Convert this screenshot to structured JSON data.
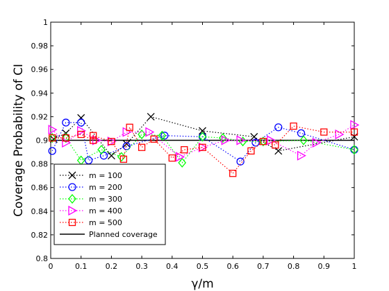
{
  "chart_data": {
    "type": "line",
    "xlabel": "γ/m",
    "ylabel": "Coverage Probability of CI",
    "xlim": [
      0,
      1
    ],
    "ylim": [
      0.8,
      1
    ],
    "xticks": [
      "0",
      "0.1",
      "0.2",
      "0.3",
      "0.4",
      "0.5",
      "0.6",
      "0.7",
      "0.8",
      "0.9",
      "1"
    ],
    "yticks": [
      "0.8",
      "0.82",
      "0.84",
      "0.86",
      "0.88",
      "0.9",
      "0.92",
      "0.94",
      "0.96",
      "0.98",
      "1"
    ],
    "grid": false,
    "legend_position": "bottom-left",
    "series": [
      {
        "name": "m = 100",
        "color": "#000000",
        "marker": "x",
        "line_style": "dotted",
        "points": [
          [
            0.01,
            0.901
          ],
          [
            0.05,
            0.906
          ],
          [
            0.1,
            0.919
          ],
          [
            0.2,
            0.887
          ],
          [
            0.25,
            0.897
          ],
          [
            0.33,
            0.92
          ],
          [
            0.5,
            0.908
          ],
          [
            0.67,
            0.903
          ],
          [
            0.75,
            0.891
          ],
          [
            1.0,
            0.903
          ]
        ]
      },
      {
        "name": "m = 200",
        "color": "#0000ff",
        "marker": "circle",
        "line_style": "dotted",
        "points": [
          [
            0.005,
            0.891
          ],
          [
            0.05,
            0.915
          ],
          [
            0.1,
            0.915
          ],
          [
            0.125,
            0.883
          ],
          [
            0.175,
            0.887
          ],
          [
            0.25,
            0.895
          ],
          [
            0.375,
            0.904
          ],
          [
            0.5,
            0.903
          ],
          [
            0.625,
            0.882
          ],
          [
            0.675,
            0.898
          ],
          [
            0.75,
            0.911
          ],
          [
            0.825,
            0.906
          ],
          [
            1.0,
            0.892
          ]
        ]
      },
      {
        "name": "m = 300",
        "color": "#00ff00",
        "marker": "diamond",
        "line_style": "dotted",
        "points": [
          [
            0.005,
            0.902
          ],
          [
            0.05,
            0.902
          ],
          [
            0.1,
            0.883
          ],
          [
            0.167,
            0.892
          ],
          [
            0.233,
            0.886
          ],
          [
            0.3,
            0.905
          ],
          [
            0.367,
            0.904
          ],
          [
            0.433,
            0.881
          ],
          [
            0.5,
            0.903
          ],
          [
            0.567,
            0.902
          ],
          [
            0.633,
            0.899
          ],
          [
            0.7,
            0.899
          ],
          [
            0.833,
            0.9
          ],
          [
            1.0,
            0.892
          ]
        ]
      },
      {
        "name": "m = 400",
        "color": "#ff00ff",
        "marker": "triangle-right",
        "line_style": "dotted",
        "points": [
          [
            0.005,
            0.909
          ],
          [
            0.05,
            0.898
          ],
          [
            0.1,
            0.908
          ],
          [
            0.15,
            0.9
          ],
          [
            0.2,
            0.899
          ],
          [
            0.25,
            0.907
          ],
          [
            0.325,
            0.907
          ],
          [
            0.425,
            0.886
          ],
          [
            0.5,
            0.894
          ],
          [
            0.575,
            0.9
          ],
          [
            0.625,
            0.9
          ],
          [
            0.725,
            0.9
          ],
          [
            0.825,
            0.887
          ],
          [
            0.875,
            0.898
          ],
          [
            0.95,
            0.905
          ],
          [
            1.0,
            0.913
          ]
        ]
      },
      {
        "name": "m = 500",
        "color": "#ff0000",
        "marker": "square",
        "line_style": "dotted",
        "points": [
          [
            0.005,
            0.902
          ],
          [
            0.05,
            0.902
          ],
          [
            0.1,
            0.905
          ],
          [
            0.14,
            0.9
          ],
          [
            0.14,
            0.904
          ],
          [
            0.2,
            0.899
          ],
          [
            0.24,
            0.884
          ],
          [
            0.26,
            0.911
          ],
          [
            0.3,
            0.894
          ],
          [
            0.34,
            0.901
          ],
          [
            0.4,
            0.885
          ],
          [
            0.44,
            0.892
          ],
          [
            0.5,
            0.894
          ],
          [
            0.6,
            0.872
          ],
          [
            0.66,
            0.891
          ],
          [
            0.7,
            0.899
          ],
          [
            0.74,
            0.896
          ],
          [
            0.8,
            0.912
          ],
          [
            0.9,
            0.907
          ],
          [
            1.0,
            0.907
          ]
        ]
      }
    ],
    "reference_line": {
      "name": "Planned coverage",
      "value": 0.9,
      "color": "#000000"
    }
  }
}
